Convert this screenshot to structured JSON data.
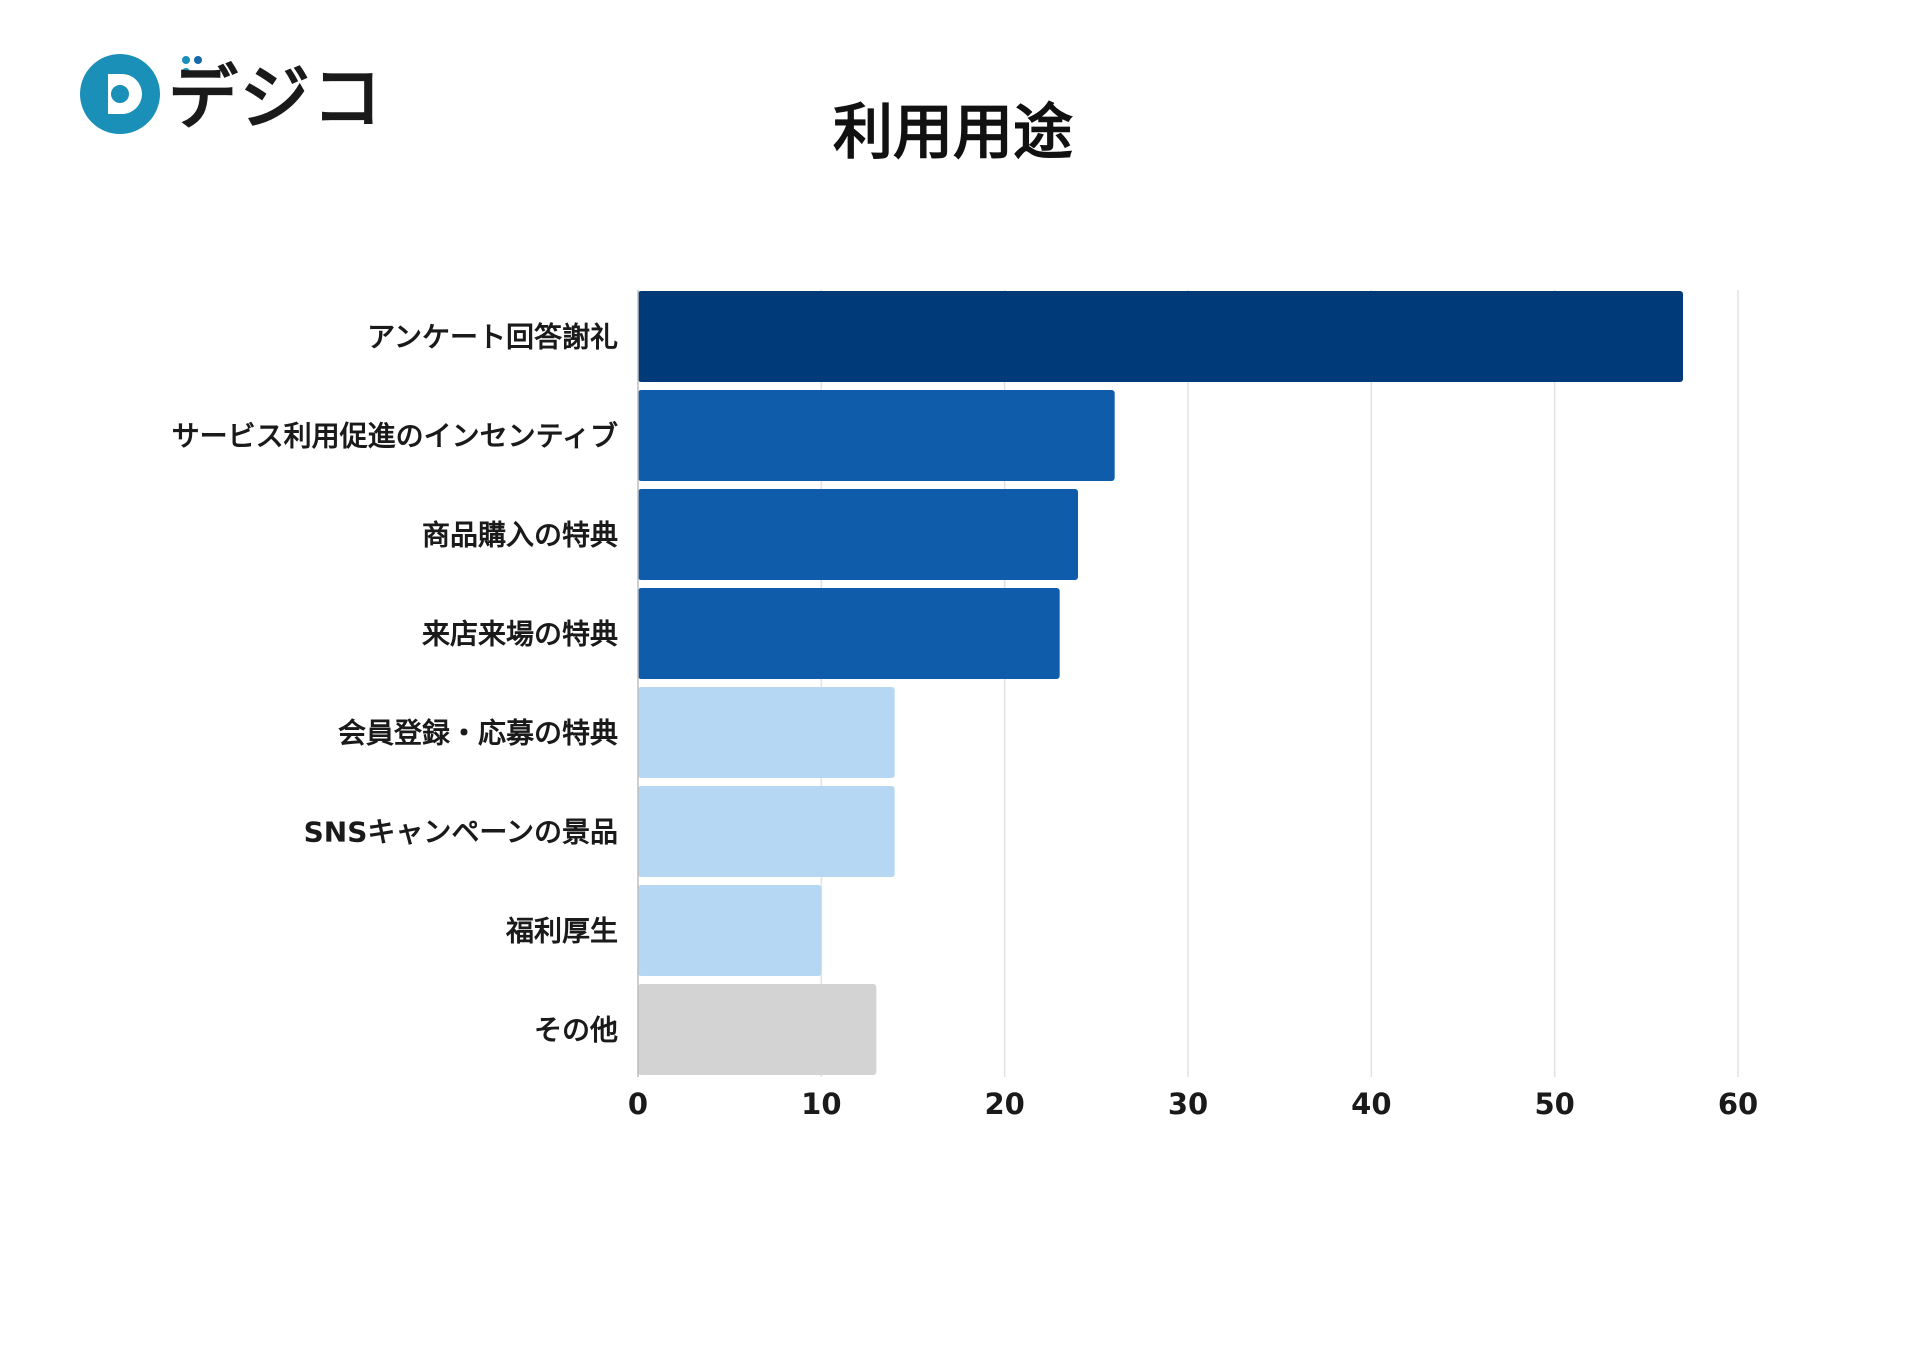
{
  "brand": {
    "logo_text": "デジコ",
    "logo_color": "#1a8fb8",
    "logo_color_dark": "#1769a8"
  },
  "chart_data": {
    "type": "bar",
    "orientation": "horizontal",
    "title": "利用用途",
    "xlabel": "",
    "ylabel": "",
    "xlim": [
      0,
      60
    ],
    "ticks": [
      0,
      10,
      20,
      30,
      40,
      50,
      60
    ],
    "grid": true,
    "categories": [
      "アンケート回答謝礼",
      "サービス利用促進のインセンティブ",
      "商品購入の特典",
      "来店来場の特典",
      "会員登録・応募の特典",
      "SNSキャンペーンの景品",
      "福利厚生",
      "その他"
    ],
    "values": [
      57,
      26,
      24,
      23,
      14,
      14,
      10,
      13
    ],
    "colors": [
      "#013a79",
      "#0f5caa",
      "#0f5caa",
      "#0f5caa",
      "#b5d7f3",
      "#b5d7f3",
      "#b5d7f3",
      "#d3d3d3"
    ]
  }
}
